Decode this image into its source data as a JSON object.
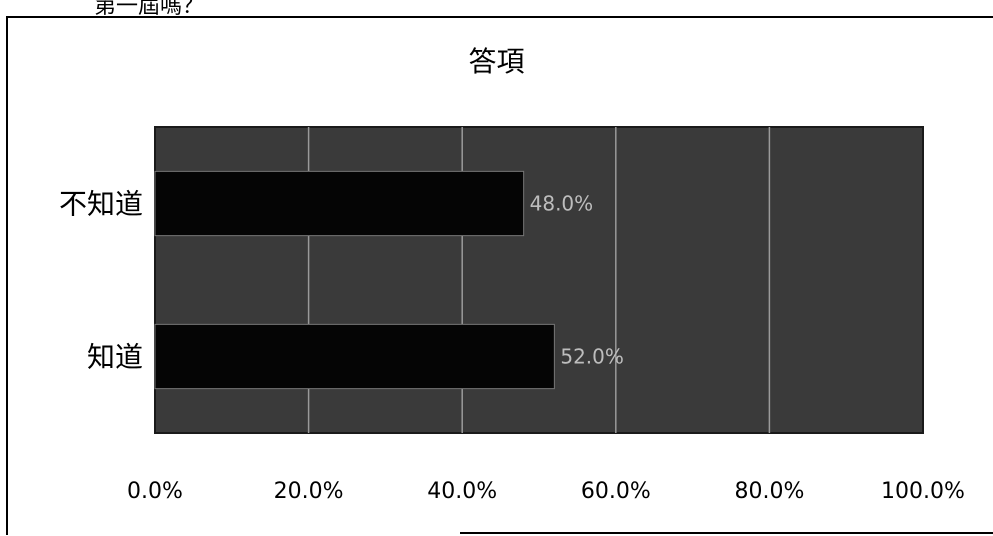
{
  "question_fragment": "第一屆嗎？",
  "chart_data": {
    "type": "bar",
    "orientation": "horizontal",
    "title": "答項",
    "categories": [
      "不知道",
      "知道"
    ],
    "values": [
      48.0,
      52.0
    ],
    "data_labels": [
      "48.0%",
      "52.0%"
    ],
    "xticks": [
      "0.0%",
      "20.0%",
      "40.0%",
      "60.0%",
      "80.0%",
      "100.0%"
    ],
    "xlim": [
      0,
      100
    ],
    "grid": true,
    "legend": "none",
    "colors": {
      "plot_bg": "#3a3a3a",
      "bar": "#050505",
      "grid": "#9a9a9a",
      "label": "#bdbdbd"
    }
  }
}
